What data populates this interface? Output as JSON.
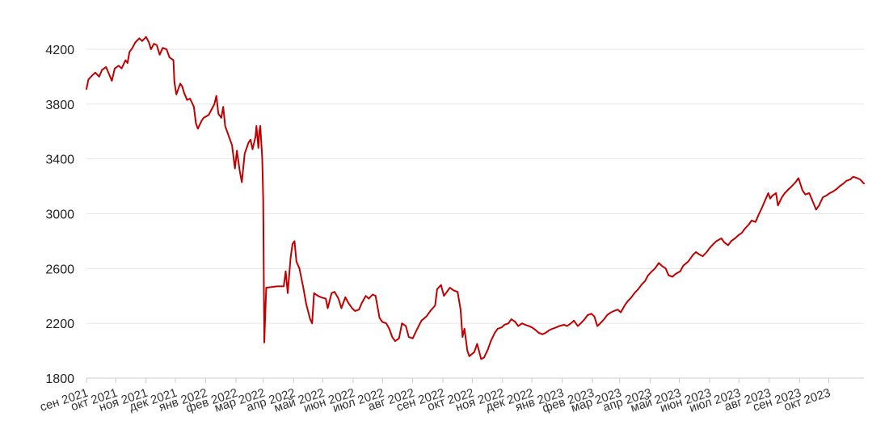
{
  "colors": {
    "line": "#c00000",
    "grid": "#e6e6e6",
    "axis": "#cccccc",
    "background": "#ffffff"
  },
  "chart_data": {
    "type": "line",
    "title": "",
    "xlabel": "",
    "ylabel": "",
    "grid": true,
    "legend": "none",
    "ylim": [
      1800,
      4300
    ],
    "yticks": [
      1800,
      2200,
      2600,
      3000,
      3400,
      3800,
      4200
    ],
    "x_tick_labels": [
      "сен 2021",
      "окт 2021",
      "ноя 2021",
      "дек 2021",
      "янв 2022",
      "фев 2022",
      "мар 2022",
      "апр 2022",
      "май 2022",
      "июн 2022",
      "июл 2022",
      "авг 2022",
      "сен 2022",
      "окт 2022",
      "ноя 2022",
      "дек 2022",
      "янв 2023",
      "фев 2023",
      "мар 2023",
      "апр 2023",
      "май 2023",
      "июн 2023",
      "июл 2023",
      "авг 2023",
      "сен 2023",
      "окт 2023"
    ],
    "x_tick_dates": [
      "2021-09-01",
      "2021-10-01",
      "2021-11-01",
      "2021-12-01",
      "2022-01-01",
      "2022-02-01",
      "2022-03-01",
      "2022-04-01",
      "2022-05-01",
      "2022-06-01",
      "2022-07-01",
      "2022-08-01",
      "2022-09-01",
      "2022-10-01",
      "2022-11-01",
      "2022-12-01",
      "2023-01-01",
      "2023-02-01",
      "2023-03-01",
      "2023-04-01",
      "2023-05-01",
      "2023-06-01",
      "2023-07-01",
      "2023-08-01",
      "2023-09-01",
      "2023-10-01"
    ],
    "xlim": [
      "2021-09-01",
      "2023-11-06"
    ],
    "series": [
      {
        "points": [
          [
            "2021-09-01",
            3910
          ],
          [
            "2021-09-03",
            3980
          ],
          [
            "2021-09-07",
            4010
          ],
          [
            "2021-09-10",
            4030
          ],
          [
            "2021-09-14",
            4000
          ],
          [
            "2021-09-17",
            4050
          ],
          [
            "2021-09-21",
            4070
          ],
          [
            "2021-09-24",
            4020
          ],
          [
            "2021-09-27",
            3970
          ],
          [
            "2021-09-30",
            4060
          ],
          [
            "2021-10-04",
            4080
          ],
          [
            "2021-10-07",
            4060
          ],
          [
            "2021-10-11",
            4120
          ],
          [
            "2021-10-13",
            4100
          ],
          [
            "2021-10-15",
            4180
          ],
          [
            "2021-10-18",
            4210
          ],
          [
            "2021-10-21",
            4250
          ],
          [
            "2021-10-25",
            4280
          ],
          [
            "2021-10-28",
            4260
          ],
          [
            "2021-11-01",
            4290
          ],
          [
            "2021-11-04",
            4250
          ],
          [
            "2021-11-06",
            4200
          ],
          [
            "2021-11-09",
            4240
          ],
          [
            "2021-11-12",
            4230
          ],
          [
            "2021-11-15",
            4160
          ],
          [
            "2021-11-18",
            4210
          ],
          [
            "2021-11-22",
            4200
          ],
          [
            "2021-11-25",
            4140
          ],
          [
            "2021-11-29",
            4120
          ],
          [
            "2021-11-30",
            3960
          ],
          [
            "2021-12-02",
            3870
          ],
          [
            "2021-12-06",
            3950
          ],
          [
            "2021-12-08",
            3930
          ],
          [
            "2021-12-10",
            3880
          ],
          [
            "2021-12-13",
            3830
          ],
          [
            "2021-12-16",
            3840
          ],
          [
            "2021-12-20",
            3780
          ],
          [
            "2021-12-22",
            3660
          ],
          [
            "2021-12-24",
            3620
          ],
          [
            "2021-12-28",
            3680
          ],
          [
            "2021-12-30",
            3700
          ],
          [
            "2022-01-04",
            3720
          ],
          [
            "2022-01-07",
            3760
          ],
          [
            "2022-01-10",
            3800
          ],
          [
            "2022-01-12",
            3860
          ],
          [
            "2022-01-14",
            3730
          ],
          [
            "2022-01-17",
            3700
          ],
          [
            "2022-01-19",
            3780
          ],
          [
            "2022-01-21",
            3640
          ],
          [
            "2022-01-25",
            3560
          ],
          [
            "2022-01-28",
            3500
          ],
          [
            "2022-01-31",
            3330
          ],
          [
            "2022-02-02",
            3460
          ],
          [
            "2022-02-05",
            3310
          ],
          [
            "2022-02-07",
            3230
          ],
          [
            "2022-02-10",
            3440
          ],
          [
            "2022-02-14",
            3520
          ],
          [
            "2022-02-16",
            3540
          ],
          [
            "2022-02-18",
            3470
          ],
          [
            "2022-02-21",
            3560
          ],
          [
            "2022-02-22",
            3640
          ],
          [
            "2022-02-24",
            3480
          ],
          [
            "2022-02-25",
            3600
          ],
          [
            "2022-02-26",
            3640
          ],
          [
            "2022-02-28",
            3400
          ],
          [
            "2022-03-01",
            3100
          ],
          [
            "2022-03-02",
            2060
          ],
          [
            "2022-03-04",
            2460
          ],
          [
            "2022-03-15",
            2470
          ],
          [
            "2022-03-22",
            2470
          ],
          [
            "2022-03-24",
            2580
          ],
          [
            "2022-03-26",
            2420
          ],
          [
            "2022-03-29",
            2680
          ],
          [
            "2022-03-31",
            2780
          ],
          [
            "2022-04-02",
            2800
          ],
          [
            "2022-04-04",
            2650
          ],
          [
            "2022-04-07",
            2600
          ],
          [
            "2022-04-11",
            2460
          ],
          [
            "2022-04-14",
            2340
          ],
          [
            "2022-04-18",
            2230
          ],
          [
            "2022-04-20",
            2200
          ],
          [
            "2022-04-22",
            2420
          ],
          [
            "2022-04-26",
            2400
          ],
          [
            "2022-04-29",
            2390
          ],
          [
            "2022-05-04",
            2380
          ],
          [
            "2022-05-06",
            2310
          ],
          [
            "2022-05-10",
            2420
          ],
          [
            "2022-05-13",
            2430
          ],
          [
            "2022-05-17",
            2380
          ],
          [
            "2022-05-20",
            2310
          ],
          [
            "2022-05-24",
            2390
          ],
          [
            "2022-05-27",
            2350
          ],
          [
            "2022-05-31",
            2310
          ],
          [
            "2022-06-03",
            2290
          ],
          [
            "2022-06-07",
            2300
          ],
          [
            "2022-06-10",
            2350
          ],
          [
            "2022-06-14",
            2400
          ],
          [
            "2022-06-17",
            2380
          ],
          [
            "2022-06-21",
            2410
          ],
          [
            "2022-06-24",
            2400
          ],
          [
            "2022-06-28",
            2240
          ],
          [
            "2022-07-01",
            2210
          ],
          [
            "2022-07-05",
            2200
          ],
          [
            "2022-07-08",
            2160
          ],
          [
            "2022-07-11",
            2100
          ],
          [
            "2022-07-14",
            2070
          ],
          [
            "2022-07-18",
            2090
          ],
          [
            "2022-07-21",
            2200
          ],
          [
            "2022-07-25",
            2180
          ],
          [
            "2022-07-28",
            2100
          ],
          [
            "2022-08-01",
            2090
          ],
          [
            "2022-08-05",
            2150
          ],
          [
            "2022-08-10",
            2220
          ],
          [
            "2022-08-15",
            2250
          ],
          [
            "2022-08-19",
            2290
          ],
          [
            "2022-08-24",
            2330
          ],
          [
            "2022-08-26",
            2450
          ],
          [
            "2022-08-30",
            2480
          ],
          [
            "2022-09-02",
            2400
          ],
          [
            "2022-09-05",
            2430
          ],
          [
            "2022-09-08",
            2460
          ],
          [
            "2022-09-12",
            2440
          ],
          [
            "2022-09-16",
            2430
          ],
          [
            "2022-09-19",
            2300
          ],
          [
            "2022-09-21",
            2100
          ],
          [
            "2022-09-23",
            2160
          ],
          [
            "2022-09-26",
            2000
          ],
          [
            "2022-09-28",
            1960
          ],
          [
            "2022-10-03",
            1990
          ],
          [
            "2022-10-06",
            2050
          ],
          [
            "2022-10-10",
            1940
          ],
          [
            "2022-10-13",
            1950
          ],
          [
            "2022-10-17",
            2010
          ],
          [
            "2022-10-20",
            2070
          ],
          [
            "2022-10-24",
            2130
          ],
          [
            "2022-10-27",
            2160
          ],
          [
            "2022-10-31",
            2170
          ],
          [
            "2022-11-03",
            2190
          ],
          [
            "2022-11-07",
            2200
          ],
          [
            "2022-11-10",
            2230
          ],
          [
            "2022-11-14",
            2210
          ],
          [
            "2022-11-17",
            2180
          ],
          [
            "2022-11-21",
            2200
          ],
          [
            "2022-11-24",
            2190
          ],
          [
            "2022-11-28",
            2180
          ],
          [
            "2022-12-01",
            2170
          ],
          [
            "2022-12-05",
            2150
          ],
          [
            "2022-12-08",
            2130
          ],
          [
            "2022-12-12",
            2120
          ],
          [
            "2022-12-15",
            2130
          ],
          [
            "2022-12-19",
            2150
          ],
          [
            "2022-12-22",
            2160
          ],
          [
            "2022-12-26",
            2170
          ],
          [
            "2022-12-29",
            2180
          ],
          [
            "2023-01-03",
            2190
          ],
          [
            "2023-01-06",
            2180
          ],
          [
            "2023-01-10",
            2200
          ],
          [
            "2023-01-13",
            2220
          ],
          [
            "2023-01-17",
            2180
          ],
          [
            "2023-01-20",
            2200
          ],
          [
            "2023-01-24",
            2230
          ],
          [
            "2023-01-27",
            2260
          ],
          [
            "2023-01-31",
            2270
          ],
          [
            "2023-02-03",
            2250
          ],
          [
            "2023-02-06",
            2180
          ],
          [
            "2023-02-09",
            2200
          ],
          [
            "2023-02-13",
            2230
          ],
          [
            "2023-02-16",
            2260
          ],
          [
            "2023-02-20",
            2280
          ],
          [
            "2023-02-23",
            2290
          ],
          [
            "2023-02-27",
            2300
          ],
          [
            "2023-03-02",
            2280
          ],
          [
            "2023-03-06",
            2330
          ],
          [
            "2023-03-09",
            2360
          ],
          [
            "2023-03-13",
            2390
          ],
          [
            "2023-03-16",
            2420
          ],
          [
            "2023-03-20",
            2450
          ],
          [
            "2023-03-23",
            2480
          ],
          [
            "2023-03-27",
            2510
          ],
          [
            "2023-03-30",
            2550
          ],
          [
            "2023-04-03",
            2580
          ],
          [
            "2023-04-06",
            2600
          ],
          [
            "2023-04-10",
            2640
          ],
          [
            "2023-04-13",
            2620
          ],
          [
            "2023-04-17",
            2600
          ],
          [
            "2023-04-20",
            2550
          ],
          [
            "2023-04-24",
            2540
          ],
          [
            "2023-04-27",
            2560
          ],
          [
            "2023-05-02",
            2580
          ],
          [
            "2023-05-05",
            2620
          ],
          [
            "2023-05-10",
            2650
          ],
          [
            "2023-05-15",
            2700
          ],
          [
            "2023-05-18",
            2720
          ],
          [
            "2023-05-22",
            2700
          ],
          [
            "2023-05-25",
            2690
          ],
          [
            "2023-05-29",
            2720
          ],
          [
            "2023-06-01",
            2750
          ],
          [
            "2023-06-05",
            2780
          ],
          [
            "2023-06-08",
            2800
          ],
          [
            "2023-06-13",
            2820
          ],
          [
            "2023-06-16",
            2790
          ],
          [
            "2023-06-20",
            2770
          ],
          [
            "2023-06-23",
            2800
          ],
          [
            "2023-06-27",
            2820
          ],
          [
            "2023-06-30",
            2840
          ],
          [
            "2023-07-04",
            2860
          ],
          [
            "2023-07-07",
            2890
          ],
          [
            "2023-07-11",
            2920
          ],
          [
            "2023-07-14",
            2950
          ],
          [
            "2023-07-18",
            2940
          ],
          [
            "2023-07-21",
            2990
          ],
          [
            "2023-07-25",
            3050
          ],
          [
            "2023-07-28",
            3100
          ],
          [
            "2023-07-31",
            3150
          ],
          [
            "2023-08-02",
            3110
          ],
          [
            "2023-08-04",
            3130
          ],
          [
            "2023-08-08",
            3150
          ],
          [
            "2023-08-10",
            3060
          ],
          [
            "2023-08-14",
            3120
          ],
          [
            "2023-08-17",
            3150
          ],
          [
            "2023-08-21",
            3180
          ],
          [
            "2023-08-24",
            3200
          ],
          [
            "2023-08-28",
            3230
          ],
          [
            "2023-08-31",
            3260
          ],
          [
            "2023-09-04",
            3170
          ],
          [
            "2023-09-07",
            3140
          ],
          [
            "2023-09-11",
            3150
          ],
          [
            "2023-09-14",
            3100
          ],
          [
            "2023-09-18",
            3030
          ],
          [
            "2023-09-21",
            3060
          ],
          [
            "2023-09-25",
            3120
          ],
          [
            "2023-09-28",
            3130
          ],
          [
            "2023-10-02",
            3150
          ],
          [
            "2023-10-05",
            3160
          ],
          [
            "2023-10-09",
            3180
          ],
          [
            "2023-10-12",
            3200
          ],
          [
            "2023-10-16",
            3220
          ],
          [
            "2023-10-19",
            3240
          ],
          [
            "2023-10-23",
            3250
          ],
          [
            "2023-10-26",
            3270
          ],
          [
            "2023-10-30",
            3260
          ],
          [
            "2023-11-02",
            3250
          ],
          [
            "2023-11-06",
            3220
          ]
        ]
      }
    ]
  }
}
